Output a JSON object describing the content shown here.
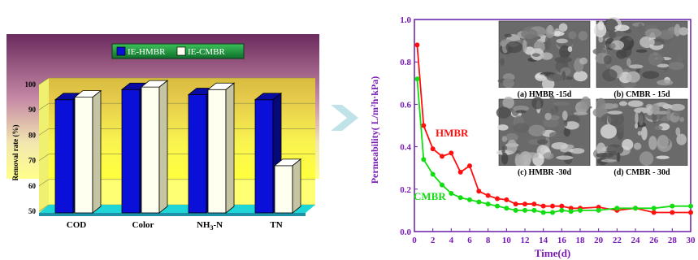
{
  "chart_data": [
    {
      "type": "bar",
      "categories": [
        "COD",
        "Color",
        "NH3-N",
        "TN"
      ],
      "series": [
        {
          "name": "IE-HMBR",
          "values": [
            94,
            98,
            96,
            94
          ],
          "color": "#0a10d8"
        },
        {
          "name": "IE-CMBR",
          "values": [
            95,
            99,
            98,
            68
          ],
          "color": "#fffff0"
        }
      ],
      "ylabel": "Removal rate (%)",
      "ylim": [
        50,
        100
      ],
      "yticks": [
        50,
        60,
        70,
        80,
        90,
        100
      ],
      "legend": "top-center",
      "colors": {
        "wall_top": "#6a2a5c",
        "wall_bottom": "#ffff88",
        "floor": "#1fd6d6",
        "pedestal": "#1e90a8"
      }
    },
    {
      "type": "line",
      "series": [
        {
          "name": "HMBR",
          "color": "#ff1010",
          "x": [
            0.3,
            1,
            2,
            3,
            4,
            5,
            6,
            7,
            8,
            9,
            10,
            11,
            12,
            13,
            14,
            15,
            16,
            17,
            18,
            20,
            22,
            24,
            26,
            28,
            30
          ],
          "y": [
            0.88,
            0.5,
            0.39,
            0.355,
            0.37,
            0.28,
            0.31,
            0.19,
            0.17,
            0.155,
            0.15,
            0.13,
            0.13,
            0.13,
            0.12,
            0.12,
            0.12,
            0.11,
            0.11,
            0.115,
            0.1,
            0.11,
            0.09,
            0.09,
            0.09
          ]
        },
        {
          "name": "CMBR",
          "color": "#11dd11",
          "x": [
            0.3,
            1,
            2,
            3,
            4,
            5,
            6,
            7,
            8,
            9,
            10,
            11,
            12,
            13,
            14,
            15,
            16,
            17,
            18,
            20,
            22,
            24,
            26,
            28,
            30
          ],
          "y": [
            0.72,
            0.34,
            0.27,
            0.22,
            0.18,
            0.16,
            0.15,
            0.14,
            0.13,
            0.12,
            0.11,
            0.1,
            0.1,
            0.1,
            0.09,
            0.09,
            0.1,
            0.095,
            0.1,
            0.1,
            0.11,
            0.11,
            0.11,
            0.12,
            0.12
          ]
        }
      ],
      "xlabel": "Time(d)",
      "ylabel": "Permeability( L/m²h·kPa)",
      "xlim": [
        0,
        30
      ],
      "ylim": [
        0,
        1.0
      ],
      "xticks": [
        0,
        2,
        4,
        6,
        8,
        10,
        12,
        14,
        16,
        18,
        20,
        22,
        24,
        26,
        28,
        30
      ],
      "yticks": [
        0.0,
        0.2,
        0.4,
        0.6,
        0.8,
        1.0
      ],
      "annotations": [
        {
          "text": "HMBR",
          "color": "#ff1010"
        },
        {
          "text": "CMBR",
          "color": "#11dd11"
        }
      ],
      "micrographs": [
        "(a) HMBR -15d",
        "(b) CMBR - 15d",
        "(c) HMBR -30d",
        "(d) CMBR - 30d"
      ]
    }
  ]
}
